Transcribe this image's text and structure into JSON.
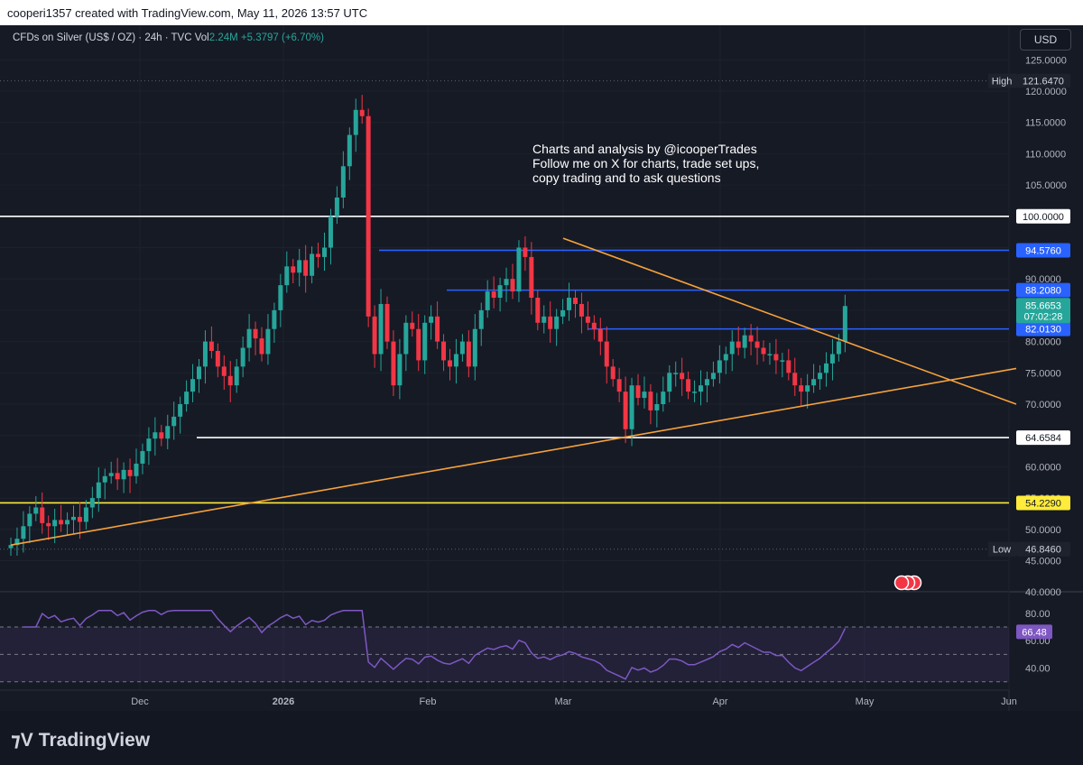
{
  "header": {
    "credit": "cooperi1357 created with TradingView.com, May 11, 2026 13:57 UTC"
  },
  "legend": {
    "symbol": "CFDs on Silver (US$ / OZ) · 24h · TVC",
    "vol_label": "Vol",
    "volume": "2.24M",
    "change": "+5.3797 (+6.70%)"
  },
  "currency_button": "USD",
  "annotation": {
    "lines": [
      "Charts and analysis by @icooperTrades",
      "Follow me on X for charts, trade set ups,",
      "copy trading and to ask questions"
    ]
  },
  "brand": "TradingView",
  "colors": {
    "up": "#26a69a",
    "down": "#f23645",
    "orange": "#f7a23a",
    "blue": "#2962ff",
    "yellow": "#ffeb3b",
    "rsi": "#7e57c2"
  },
  "chart_data": {
    "type": "candlestick",
    "y_axis_ticks": [
      "125.0000",
      "120.0000",
      "115.0000",
      "110.0000",
      "105.0000",
      "100.0000",
      "95.0000",
      "90.0000",
      "85.0000",
      "80.0000",
      "75.0000",
      "70.0000",
      "65.0000",
      "60.0000",
      "55.0000",
      "50.0000",
      "45.0000",
      "40.0000"
    ],
    "x_axis_ticks": [
      "Dec",
      "2026",
      "Feb",
      "Mar",
      "Apr",
      "May",
      "Jun"
    ],
    "ylim": [
      40,
      125
    ],
    "last_price": "85.6653",
    "countdown": "07:02:28",
    "high": {
      "label": "High",
      "value": "121.6470"
    },
    "low": {
      "label": "Low",
      "value": "46.8460"
    },
    "levels": [
      {
        "value": "100.0000",
        "price": 100,
        "color": "#ffffff"
      },
      {
        "value": "94.5760",
        "price": 94.576,
        "color": "#2962ff"
      },
      {
        "value": "88.2080",
        "price": 88.208,
        "color": "#2962ff"
      },
      {
        "value": "82.0130",
        "price": 82.013,
        "color": "#2962ff"
      },
      {
        "value": "64.6584",
        "price": 64.6584,
        "color": "#ffffff"
      },
      {
        "value": "54.2290",
        "price": 54.229,
        "color": "#ffeb3b"
      }
    ],
    "closes": [
      47.5,
      48.5,
      50.5,
      52.5,
      53.5,
      51,
      50.5,
      51.5,
      50.8,
      51.5,
      52,
      51.2,
      53.5,
      55,
      57.5,
      58.5,
      59,
      58,
      59.5,
      58.5,
      60.5,
      62.5,
      64.5,
      65.5,
      64.5,
      66.5,
      68,
      70,
      72,
      74,
      76,
      80,
      78.5,
      76,
      74.5,
      73,
      76,
      79,
      82,
      80.5,
      78,
      82,
      85,
      89,
      92,
      91,
      93,
      90.5,
      94,
      93.5,
      95,
      100,
      103,
      108,
      113,
      117,
      116,
      84,
      78,
      86,
      80,
      73,
      78,
      83,
      82,
      77,
      83,
      84,
      80,
      77,
      76,
      78,
      80,
      76,
      82,
      85,
      88,
      87,
      89,
      90,
      88,
      95,
      93.5,
      87,
      83,
      84,
      82,
      84,
      85,
      87,
      86,
      84,
      83,
      82,
      80,
      76,
      74,
      72,
      66,
      73,
      71,
      72,
      69,
      70,
      72,
      75,
      75,
      74,
      72,
      72,
      73,
      74,
      75,
      77,
      78,
      80,
      79,
      81,
      80,
      79,
      78,
      78,
      77,
      77,
      75,
      73,
      72,
      73,
      74,
      75,
      76.5,
      78,
      80,
      85.67
    ],
    "rsi": {
      "value": "66.48",
      "ticks": [
        "80.00",
        "60.00",
        "40.00"
      ],
      "levels": [
        70,
        50,
        30
      ],
      "ylim": [
        30,
        85
      ]
    }
  }
}
